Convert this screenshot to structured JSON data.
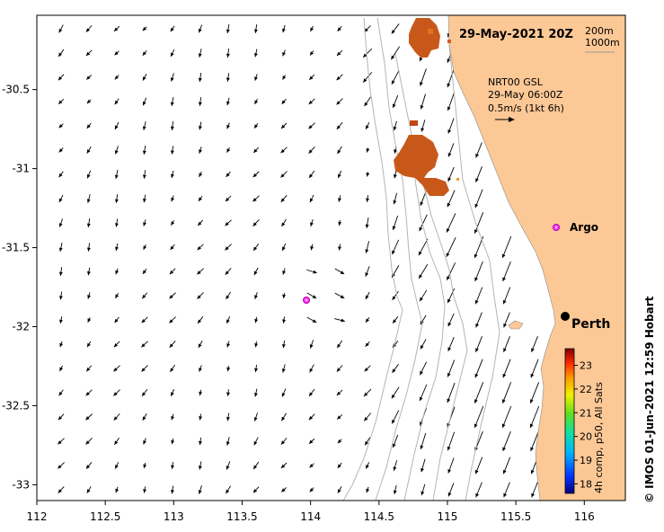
{
  "map": {
    "title": "29-May-2021 20Z",
    "legend_isobaths": [
      "200m",
      "1000m"
    ],
    "model_lines": [
      "NRT00 GSL",
      "29-May 06:00Z",
      "0.5m/s (1kt 6h)"
    ],
    "lon_ticks": [
      "112",
      "112.5",
      "113",
      "113.5",
      "114",
      "114.5",
      "115",
      "115.5",
      "116"
    ],
    "lat_ticks": [
      "-30.5",
      "-31",
      "-31.5",
      "-32",
      "-32.5",
      "-33"
    ],
    "extent": {
      "lon_min": 112.0,
      "lon_max": 116.3,
      "lat_max": -30.03,
      "lat_min": -33.1
    },
    "land_color": "#fcc896",
    "places": [
      {
        "name": "Perth",
        "lon": 115.86,
        "lat": -31.95
      },
      {
        "name": "Argo",
        "lon": 115.85,
        "lat": -31.4
      }
    ],
    "argo_floats": [
      {
        "lon": 115.85,
        "lat": -31.4
      },
      {
        "lon": 113.98,
        "lat": -31.85
      }
    ],
    "colorbar": {
      "title": "4h comp, p50, All Sats",
      "ticks": [
        "18",
        "19",
        "20",
        "21",
        "22",
        "23"
      ],
      "min": 17.6,
      "max": 23.7
    },
    "credit": "© IMOS 01-Jun-2021 12:59 Hobart"
  }
}
